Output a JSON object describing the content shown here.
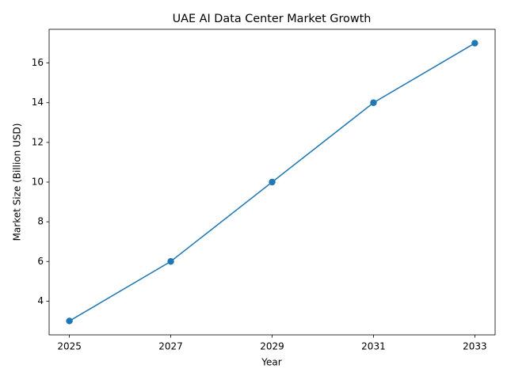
{
  "chart_data": {
    "type": "line",
    "title": "UAE AI Data Center Market Growth",
    "x_label": "Year",
    "y_label": "Market Size (Billion USD)",
    "x": [
      2025,
      2027,
      2029,
      2031,
      2033
    ],
    "series": [
      {
        "name": "Market Size",
        "color": "#1f77b4",
        "values": [
          3,
          6,
          10,
          14,
          17
        ]
      }
    ],
    "xlim": [
      2024.6,
      2033.4
    ],
    "xticks": [
      2025,
      2027,
      2029,
      2031,
      2033
    ],
    "ylim": [
      2.3,
      17.7
    ],
    "yticks": [
      4,
      6,
      8,
      10,
      12,
      14,
      16
    ],
    "grid": false,
    "markers": true
  }
}
